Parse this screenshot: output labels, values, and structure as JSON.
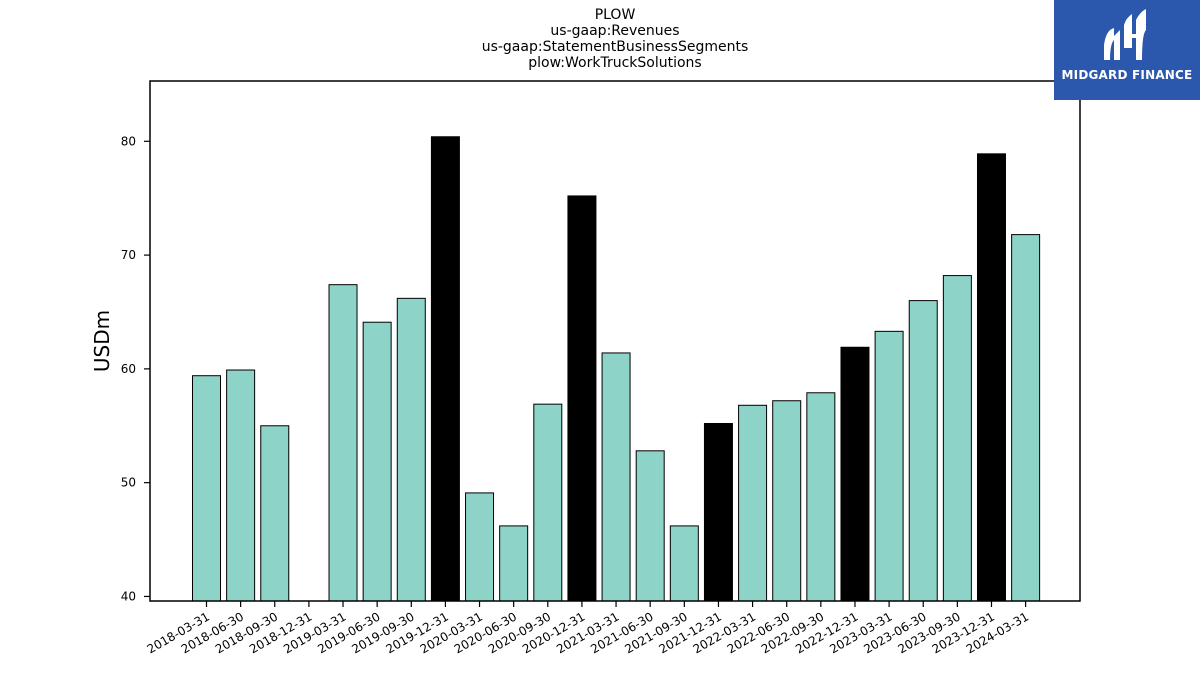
{
  "title_lines": [
    "PLOW",
    "us-gaap:Revenues",
    "us-gaap:StatementBusinessSegments",
    "plow:WorkTruckSolutions"
  ],
  "logo": {
    "text": "MIDGARD FINANCE",
    "icon": "midgard-logo-icon",
    "background": "#2b57ad"
  },
  "chart_data": {
    "type": "bar",
    "ylabel": "USDm",
    "xlabel": "",
    "ylim": [
      39.6,
      85.3
    ],
    "yticks": [
      40,
      50,
      60,
      70,
      80
    ],
    "grid": false,
    "colors": {
      "quarter": "#8dd3c7",
      "year_end": "#000000"
    },
    "categories": [
      "2018-03-31",
      "2018-06-30",
      "2018-09-30",
      "2018-12-31",
      "2019-03-31",
      "2019-06-30",
      "2019-09-30",
      "2019-12-31",
      "2020-03-31",
      "2020-06-30",
      "2020-09-30",
      "2020-12-31",
      "2021-03-31",
      "2021-06-30",
      "2021-09-30",
      "2021-12-31",
      "2022-03-31",
      "2022-06-30",
      "2022-09-30",
      "2022-12-31",
      "2023-03-31",
      "2023-06-30",
      "2023-09-30",
      "2023-12-31",
      "2024-03-31"
    ],
    "values": [
      59.4,
      59.9,
      55.0,
      null,
      67.4,
      64.1,
      66.2,
      80.4,
      49.1,
      46.2,
      56.9,
      75.2,
      61.4,
      52.8,
      46.2,
      55.2,
      56.8,
      57.2,
      57.9,
      61.9,
      63.3,
      66.0,
      68.2,
      78.9,
      71.8
    ],
    "highlight": [
      false,
      false,
      false,
      true,
      false,
      false,
      false,
      true,
      false,
      false,
      false,
      true,
      false,
      false,
      false,
      true,
      false,
      false,
      false,
      true,
      false,
      false,
      false,
      true,
      false
    ]
  }
}
